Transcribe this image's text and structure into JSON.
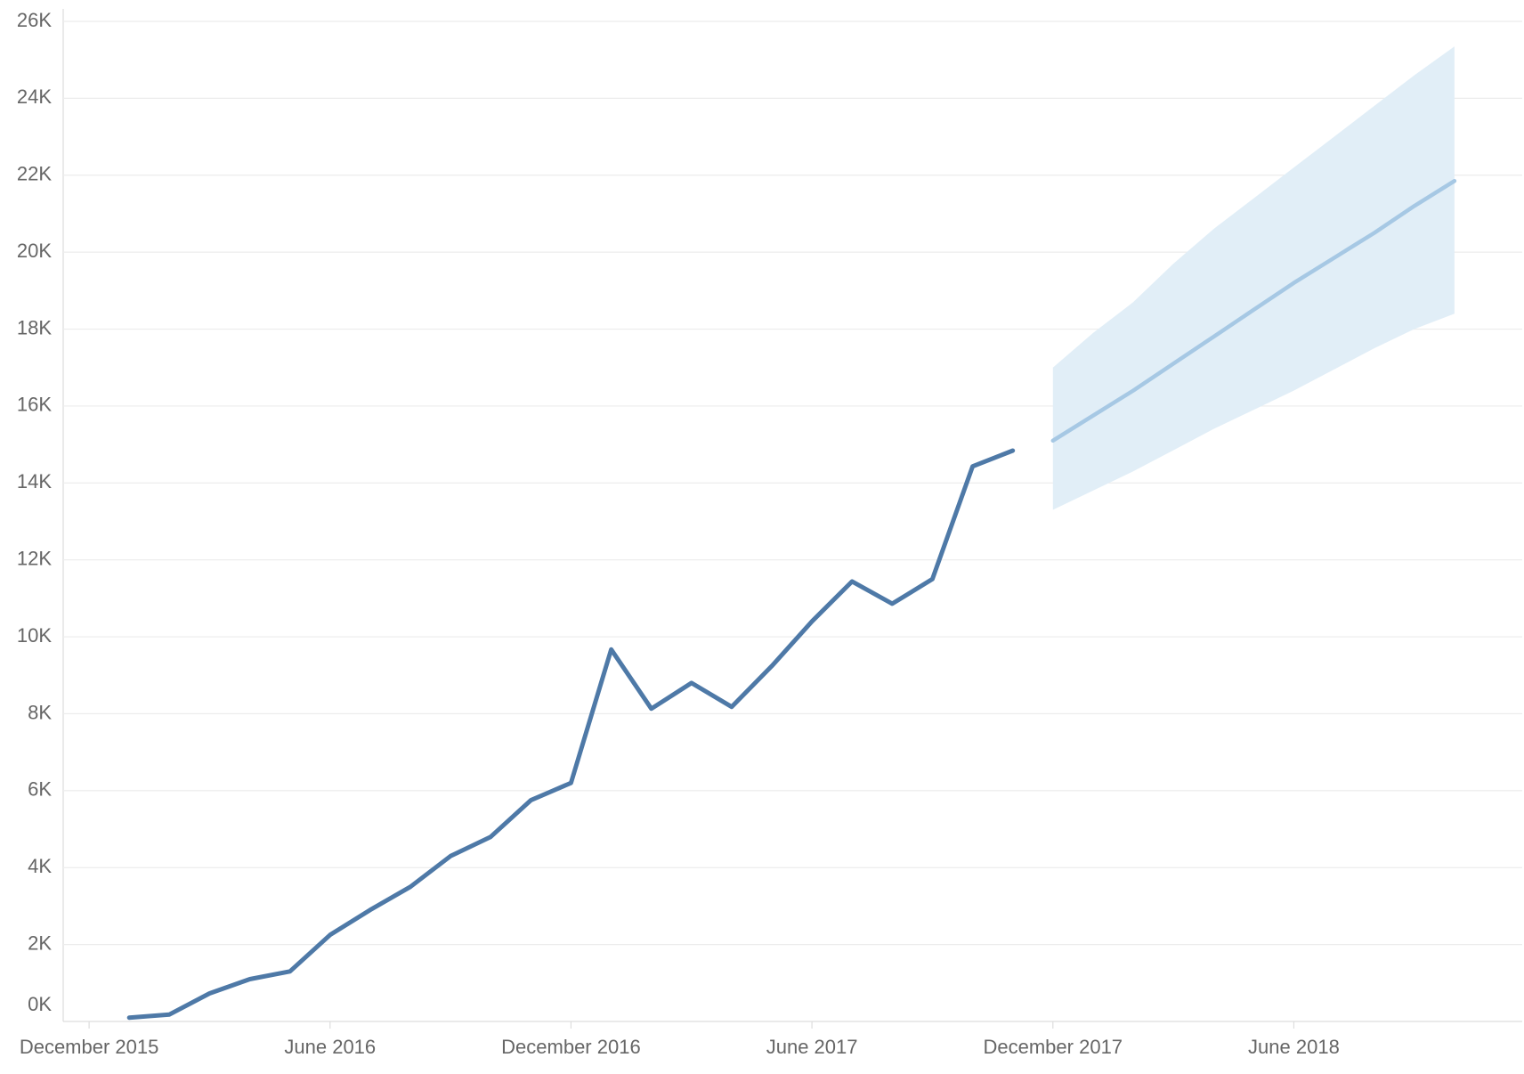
{
  "chart_data": {
    "type": "line",
    "x": [
      "2016-01",
      "2016-02",
      "2016-03",
      "2016-04",
      "2016-05",
      "2016-06",
      "2016-07",
      "2016-08",
      "2016-09",
      "2016-10",
      "2016-11",
      "2016-12",
      "2017-01",
      "2017-02",
      "2017-03",
      "2017-04",
      "2017-05",
      "2017-06",
      "2017-07",
      "2017-08",
      "2017-09",
      "2017-10",
      "2017-11"
    ],
    "values": [
      100,
      180,
      730,
      1100,
      1300,
      2250,
      2900,
      3500,
      4300,
      4800,
      5750,
      6200,
      9670,
      8130,
      8800,
      8180,
      9240,
      10400,
      11440,
      10860,
      11500,
      14430,
      14840
    ],
    "color": "#4e79a7",
    "forecast": {
      "x": [
        "2017-12",
        "2018-01",
        "2018-02",
        "2018-03",
        "2018-04",
        "2018-05",
        "2018-06",
        "2018-07",
        "2018-08",
        "2018-09",
        "2018-10"
      ],
      "values": [
        15100,
        15750,
        16400,
        17100,
        17800,
        18500,
        19200,
        19850,
        20500,
        21200,
        21850
      ],
      "upper": [
        17000,
        17900,
        18700,
        19700,
        20600,
        21400,
        22200,
        23000,
        23800,
        24600,
        25350
      ],
      "lower": [
        13300,
        13800,
        14300,
        14850,
        15400,
        15900,
        16400,
        16950,
        17500,
        18000,
        18400
      ],
      "color": "#a6c8e4",
      "band_color": "#e1eef7"
    },
    "xlim": [
      "2015-11",
      "2018-11"
    ],
    "xticks": [
      {
        "value": "2015-12",
        "label": "December 2015"
      },
      {
        "value": "2016-06",
        "label": "June 2016"
      },
      {
        "value": "2016-12",
        "label": "December 2016"
      },
      {
        "value": "2017-06",
        "label": "June 2017"
      },
      {
        "value": "2017-12",
        "label": "December 2017"
      },
      {
        "value": "2018-06",
        "label": "June 2018"
      }
    ],
    "ylim": [
      0,
      26000
    ],
    "yticks": [
      {
        "value": 0,
        "label": "0K"
      },
      {
        "value": 2000,
        "label": "2K"
      },
      {
        "value": 4000,
        "label": "4K"
      },
      {
        "value": 6000,
        "label": "6K"
      },
      {
        "value": 8000,
        "label": "8K"
      },
      {
        "value": 10000,
        "label": "10K"
      },
      {
        "value": 12000,
        "label": "12K"
      },
      {
        "value": 14000,
        "label": "14K"
      },
      {
        "value": 16000,
        "label": "16K"
      },
      {
        "value": 18000,
        "label": "18K"
      },
      {
        "value": 20000,
        "label": "20K"
      },
      {
        "value": 22000,
        "label": "22K"
      },
      {
        "value": 24000,
        "label": "24K"
      },
      {
        "value": 26000,
        "label": "26K"
      }
    ],
    "grid": true
  }
}
